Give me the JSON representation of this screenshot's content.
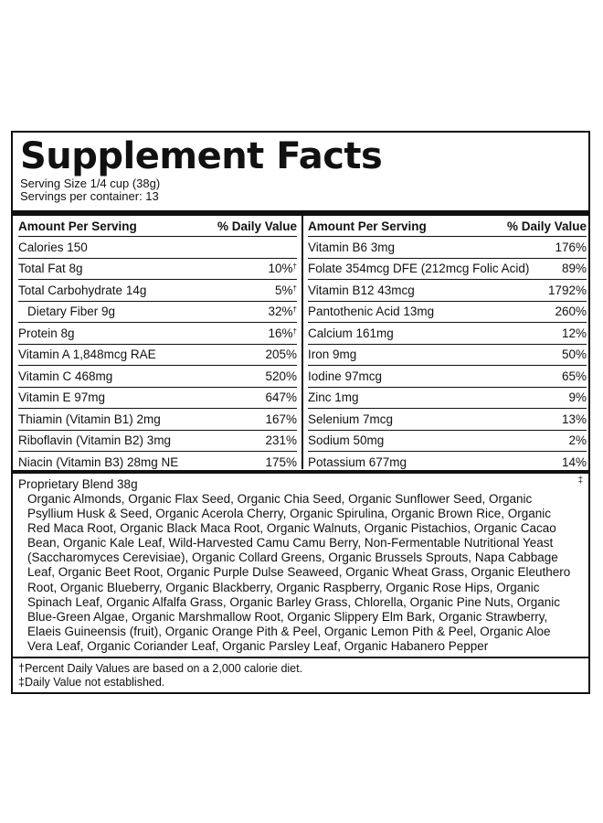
{
  "title": "Supplement Facts",
  "serving_size": "Serving Size 1/4 cup (38g)",
  "servings_per_container": "Servings per container: 13",
  "columns": {
    "left": {
      "header_amount": "Amount Per Serving",
      "header_dv": "% Daily Value",
      "rows": [
        {
          "name": "Calories  150",
          "dv": "",
          "mark": ""
        },
        {
          "name": "Total Fat  8g",
          "dv": "10%",
          "mark": "†"
        },
        {
          "name": "Total Carbohydrate  14g",
          "dv": "5%",
          "mark": "†"
        },
        {
          "name": "Dietary Fiber  9g",
          "dv": "32%",
          "mark": "†"
        },
        {
          "name": "Protein  8g",
          "dv": "16%",
          "mark": "†"
        },
        {
          "name": "Vitamin A  1,848mcg RAE",
          "dv": "205%",
          "mark": ""
        },
        {
          "name": "Vitamin C  468mg",
          "dv": "520%",
          "mark": ""
        },
        {
          "name": "Vitamin E  97mg",
          "dv": "647%",
          "mark": ""
        },
        {
          "name": "Thiamin (Vitamin B1)  2mg",
          "dv": "167%",
          "mark": ""
        },
        {
          "name": "Riboflavin (Vitamin B2)  3mg",
          "dv": "231%",
          "mark": ""
        },
        {
          "name": "Niacin (Vitamin B3)  28mg NE",
          "dv": "175%",
          "mark": ""
        }
      ]
    },
    "right": {
      "header_amount": "Amount Per Serving",
      "header_dv": "% Daily Value",
      "rows": [
        {
          "name": "Vitamin B6  3mg",
          "dv": "176%",
          "mark": ""
        },
        {
          "name": "Folate  354mcg DFE (212mcg Folic Acid)",
          "dv": "89%",
          "mark": ""
        },
        {
          "name": "Vitamin B12  43mcg",
          "dv": "1792%",
          "mark": ""
        },
        {
          "name": "Pantothenic Acid  13mg",
          "dv": "260%",
          "mark": ""
        },
        {
          "name": "Calcium  161mg",
          "dv": "12%",
          "mark": ""
        },
        {
          "name": "Iron  9mg",
          "dv": "50%",
          "mark": ""
        },
        {
          "name": "Iodine  97mcg",
          "dv": "65%",
          "mark": ""
        },
        {
          "name": "Zinc  1mg",
          "dv": "9%",
          "mark": ""
        },
        {
          "name": "Selenium  7mcg",
          "dv": "13%",
          "mark": ""
        },
        {
          "name": "Sodium  50mg",
          "dv": "2%",
          "mark": ""
        },
        {
          "name": "Potassium  677mg",
          "dv": "14%",
          "mark": ""
        }
      ]
    }
  },
  "blend": {
    "title": "Proprietary Blend  38g",
    "dv_mark": "‡",
    "ingredients": "Organic Almonds, Organic Flax Seed, Organic Chia Seed, Organic Sunflower Seed, Organic Psyllium Husk & Seed, Organic Acerola Cherry, Organic Spirulina, Organic Brown Rice, Organic Red Maca Root, Organic Black Maca Root, Organic Walnuts, Organic Pistachios, Organic Cacao Bean, Organic Kale Leaf, Wild-Harvested Camu Camu Berry, Non-Fermentable Nutritional Yeast (Saccharomyces Cerevisiae), Organic Collard Greens, Organic Brussels Sprouts, Napa Cabbage Leaf, Organic Beet Root, Organic Purple Dulse Seaweed, Organic Wheat Grass, Organic Eleuthero Root, Organic Blueberry, Organic Blackberry, Organic Raspberry, Organic Rose Hips, Organic Spinach Leaf, Organic Alfalfa Grass, Organic Barley Grass, Chlorella, Organic Pine Nuts, Organic Blue-Green Algae, Organic Marshmallow Root, Organic Slippery Elm Bark, Organic Strawberry, Elaeis Guineensis (fruit), Organic Orange Pith & Peel, Organic Lemon Pith & Peel, Organic Aloe Vera Leaf, Organic Coriander Leaf, Organic Parsley Leaf, Organic Habanero Pepper"
  },
  "footnotes": [
    "†Percent Daily Values are based on a 2,000 calorie diet.",
    "‡Daily Value not established."
  ]
}
